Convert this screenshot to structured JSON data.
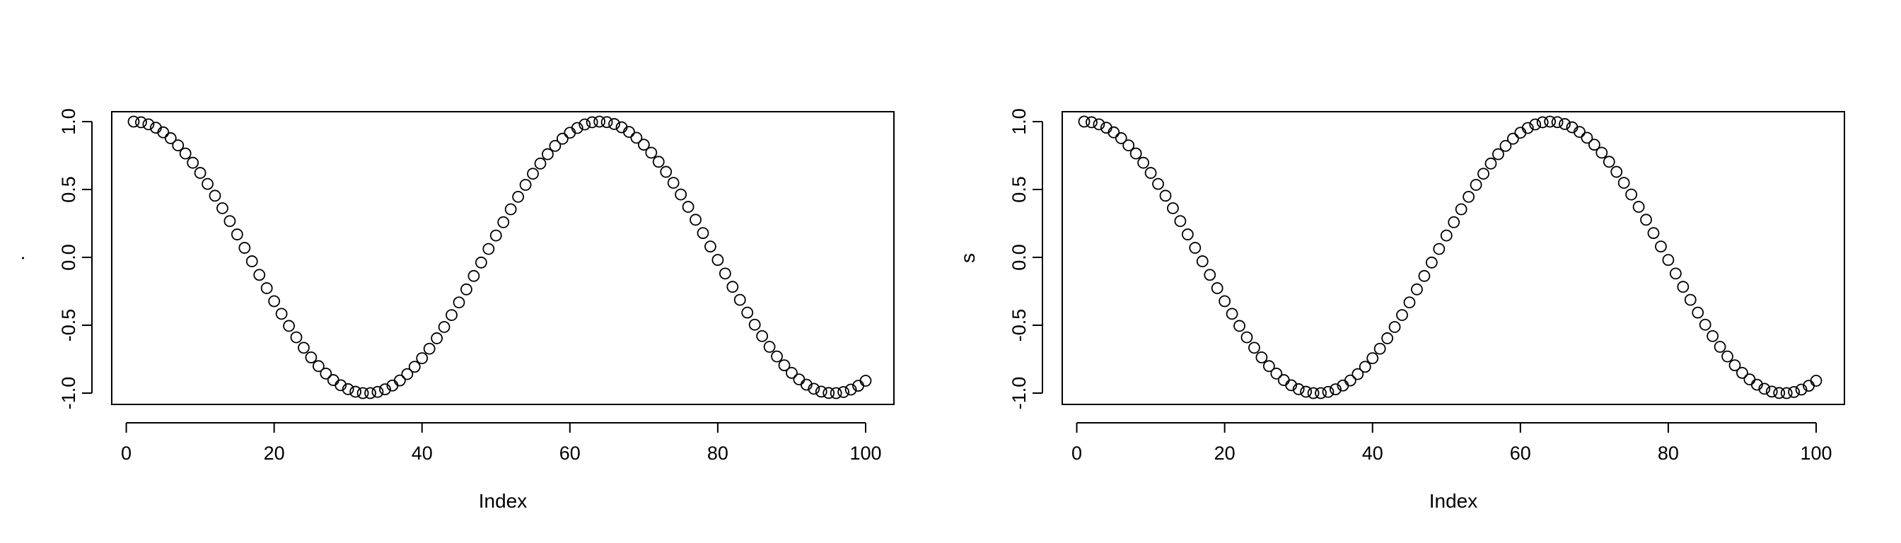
{
  "chart_data": [
    {
      "type": "scatter",
      "marker": "open-circle",
      "xlabel": "Index",
      "ylabel": ".",
      "xlim": [
        1,
        100
      ],
      "ylim": [
        -1,
        1
      ],
      "xticks": [
        0,
        20,
        40,
        60,
        80,
        100
      ],
      "yticks": [
        -1.0,
        -0.5,
        0.0,
        0.5,
        1.0
      ],
      "xtick_labels": [
        "0",
        "20",
        "40",
        "60",
        "80",
        "100"
      ],
      "ytick_labels": [
        "-1.0",
        "-0.5",
        "0.0",
        "0.5",
        "1.0"
      ],
      "grid": false,
      "series": [
        {
          "x": [
            1,
            2,
            3,
            4,
            5,
            6,
            7,
            8,
            9,
            10,
            11,
            12,
            13,
            14,
            15,
            16,
            17,
            18,
            19,
            20,
            21,
            22,
            23,
            24,
            25,
            26,
            27,
            28,
            29,
            30,
            31,
            32,
            33,
            34,
            35,
            36,
            37,
            38,
            39,
            40,
            41,
            42,
            43,
            44,
            45,
            46,
            47,
            48,
            49,
            50,
            51,
            52,
            53,
            54,
            55,
            56,
            57,
            58,
            59,
            60,
            61,
            62,
            63,
            64,
            65,
            66,
            67,
            68,
            69,
            70,
            71,
            72,
            73,
            74,
            75,
            76,
            77,
            78,
            79,
            80,
            81,
            82,
            83,
            84,
            85,
            86,
            87,
            88,
            89,
            90,
            91,
            92,
            93,
            94,
            95,
            96,
            97,
            98,
            99,
            100
          ],
          "y": [
            1.0,
            0.995,
            0.98,
            0.955,
            0.921,
            0.878,
            0.825,
            0.765,
            0.697,
            0.622,
            0.541,
            0.454,
            0.362,
            0.267,
            0.169,
            0.07,
            -0.029,
            -0.129,
            -0.227,
            -0.323,
            -0.416,
            -0.505,
            -0.589,
            -0.666,
            -0.737,
            -0.801,
            -0.856,
            -0.904,
            -0.942,
            -0.971,
            -0.99,
            -1.0,
            -1.0,
            -0.991,
            -0.972,
            -0.944,
            -0.907,
            -0.86,
            -0.806,
            -0.743,
            -0.673,
            -0.596,
            -0.513,
            -0.425,
            -0.332,
            -0.236,
            -0.137,
            -0.038,
            0.062,
            0.161,
            0.259,
            0.354,
            0.446,
            0.534,
            0.616,
            0.691,
            0.76,
            0.821,
            0.874,
            0.918,
            0.953,
            0.979,
            0.995,
            1.0,
            0.996,
            0.982,
            0.958,
            0.924,
            0.881,
            0.83,
            0.771,
            0.704,
            0.63,
            0.549,
            0.463,
            0.372,
            0.277,
            0.179,
            0.08,
            -0.019,
            -0.119,
            -0.217,
            -0.313,
            -0.407,
            -0.496,
            -0.58,
            -0.659,
            -0.73,
            -0.795,
            -0.851,
            -0.899,
            -0.938,
            -0.968,
            -0.989,
            -0.999,
            -1.0,
            -0.992,
            -0.974,
            -0.946,
            -0.909
          ]
        }
      ]
    },
    {
      "type": "scatter",
      "marker": "open-circle",
      "xlabel": "Index",
      "ylabel": "s",
      "xlim": [
        1,
        100
      ],
      "ylim": [
        -1,
        1
      ],
      "xticks": [
        0,
        20,
        40,
        60,
        80,
        100
      ],
      "yticks": [
        -1.0,
        -0.5,
        0.0,
        0.5,
        1.0
      ],
      "xtick_labels": [
        "0",
        "20",
        "40",
        "60",
        "80",
        "100"
      ],
      "ytick_labels": [
        "-1.0",
        "-0.5",
        "0.0",
        "0.5",
        "1.0"
      ],
      "grid": false,
      "series": [
        {
          "x": [
            1,
            2,
            3,
            4,
            5,
            6,
            7,
            8,
            9,
            10,
            11,
            12,
            13,
            14,
            15,
            16,
            17,
            18,
            19,
            20,
            21,
            22,
            23,
            24,
            25,
            26,
            27,
            28,
            29,
            30,
            31,
            32,
            33,
            34,
            35,
            36,
            37,
            38,
            39,
            40,
            41,
            42,
            43,
            44,
            45,
            46,
            47,
            48,
            49,
            50,
            51,
            52,
            53,
            54,
            55,
            56,
            57,
            58,
            59,
            60,
            61,
            62,
            63,
            64,
            65,
            66,
            67,
            68,
            69,
            70,
            71,
            72,
            73,
            74,
            75,
            76,
            77,
            78,
            79,
            80,
            81,
            82,
            83,
            84,
            85,
            86,
            87,
            88,
            89,
            90,
            91,
            92,
            93,
            94,
            95,
            96,
            97,
            98,
            99,
            100
          ],
          "y": [
            1.0,
            0.995,
            0.98,
            0.955,
            0.921,
            0.878,
            0.825,
            0.765,
            0.697,
            0.622,
            0.541,
            0.454,
            0.362,
            0.267,
            0.169,
            0.07,
            -0.029,
            -0.129,
            -0.227,
            -0.323,
            -0.416,
            -0.505,
            -0.589,
            -0.666,
            -0.737,
            -0.801,
            -0.856,
            -0.904,
            -0.942,
            -0.971,
            -0.99,
            -1.0,
            -1.0,
            -0.991,
            -0.972,
            -0.944,
            -0.907,
            -0.86,
            -0.806,
            -0.743,
            -0.673,
            -0.596,
            -0.513,
            -0.425,
            -0.332,
            -0.236,
            -0.137,
            -0.038,
            0.062,
            0.161,
            0.259,
            0.354,
            0.446,
            0.534,
            0.616,
            0.691,
            0.76,
            0.821,
            0.874,
            0.918,
            0.953,
            0.979,
            0.995,
            1.0,
            0.996,
            0.982,
            0.958,
            0.924,
            0.881,
            0.83,
            0.771,
            0.704,
            0.63,
            0.549,
            0.463,
            0.372,
            0.277,
            0.179,
            0.08,
            -0.019,
            -0.119,
            -0.217,
            -0.313,
            -0.407,
            -0.496,
            -0.58,
            -0.659,
            -0.73,
            -0.795,
            -0.851,
            -0.899,
            -0.938,
            -0.968,
            -0.989,
            -0.999,
            -1.0,
            -0.992,
            -0.974,
            -0.946,
            -0.909
          ]
        }
      ]
    }
  ]
}
